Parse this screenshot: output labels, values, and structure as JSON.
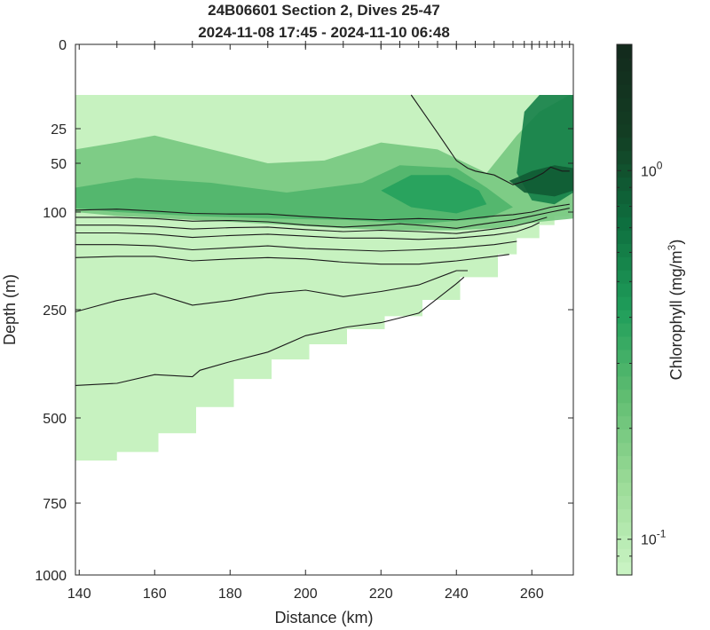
{
  "chart_data": {
    "type": "heatmap",
    "title": [
      "24B06601 Section 2, Dives 25-47",
      "2024-11-08 17:45 - 2024-11-10 06:48"
    ],
    "xlabel": "Distance (km)",
    "ylabel": "Depth (m)",
    "xlim": [
      139,
      271
    ],
    "xticks": [
      140,
      160,
      180,
      200,
      220,
      240,
      260
    ],
    "ylim": [
      0,
      1000
    ],
    "yscale": "compressed (non-linear)",
    "ytick_labels": [
      "0",
      "25",
      "50",
      "100",
      "250",
      "500",
      "750",
      "1000"
    ],
    "colorbar": {
      "label": "Chlorophyll (mg/m",
      "label_sup": "3",
      "label_end": ")",
      "scale": "log",
      "range": [
        0.08,
        2.2
      ],
      "tick_labels": [
        {
          "base": "10",
          "exp": "0"
        },
        {
          "base": "10",
          "exp": "-1"
        }
      ],
      "colormap": [
        "#ccf5c5",
        "#9ddc99",
        "#62be72",
        "#1f9e5a",
        "#0e6e3e",
        "#133d23",
        "#132a1c"
      ]
    },
    "dive_positions_km": [
      150,
      160,
      170,
      190,
      200,
      210,
      220,
      225,
      230,
      235,
      240,
      245,
      250,
      255,
      258,
      260,
      262,
      264,
      266,
      268,
      270
    ],
    "data_depth_top_m": 15,
    "bottom_profile": {
      "x": [
        139,
        150,
        161,
        171,
        181,
        191,
        201,
        211,
        221,
        231,
        241,
        251,
        256,
        262,
        266,
        270
      ],
      "depth": [
        625,
        600,
        545,
        475,
        410,
        365,
        330,
        295,
        265,
        235,
        200,
        165,
        140,
        120,
        106,
        100
      ]
    },
    "regions": [
      {
        "level": 0.2,
        "x": [
          139,
          150,
          160,
          175,
          190,
          205,
          220,
          235,
          248,
          256,
          262,
          270,
          271,
          271,
          262,
          250,
          240,
          225,
          210,
          190,
          170,
          150,
          139
        ],
        "depth": [
          40,
          35,
          30,
          40,
          50,
          48,
          35,
          40,
          60,
          30,
          20,
          15,
          15,
          110,
          115,
          125,
          128,
          128,
          125,
          118,
          112,
          106,
          100
        ]
      },
      {
        "level": 0.28,
        "x": [
          139,
          155,
          175,
          195,
          215,
          225,
          240,
          248,
          255,
          248,
          230,
          210,
          190,
          170,
          150,
          139
        ],
        "depth": [
          75,
          65,
          70,
          80,
          70,
          52,
          55,
          75,
          95,
          110,
          118,
          112,
          110,
          106,
          100,
          96
        ]
      },
      {
        "level": 0.4,
        "x": [
          220,
          228,
          238,
          246,
          248,
          240,
          228
        ],
        "depth": [
          78,
          62,
          62,
          78,
          92,
          102,
          95
        ]
      },
      {
        "level": 0.6,
        "x": [
          258,
          262,
          266,
          271,
          271,
          266,
          260,
          256
        ],
        "depth": [
          20,
          15,
          15,
          15,
          80,
          92,
          88,
          60
        ]
      },
      {
        "level": 0.9,
        "x": [
          254,
          260,
          266,
          271,
          271,
          266,
          258
        ],
        "depth": [
          68,
          58,
          52,
          55,
          78,
          84,
          80
        ]
      }
    ],
    "contours": [
      {
        "x": [
          139,
          150,
          160,
          170,
          180,
          190,
          200,
          210,
          220,
          230,
          240,
          250,
          255,
          260,
          265,
          270
        ],
        "depth": [
          98,
          97,
          99,
          102,
          103,
          103,
          107,
          110,
          112,
          110,
          112,
          106,
          104,
          100,
          95,
          92
        ]
      },
      {
        "x": [
          139,
          150,
          160,
          170,
          180,
          190,
          200,
          210,
          220,
          225,
          230,
          240,
          245,
          250,
          255,
          260,
          265,
          270
        ],
        "depth": [
          108,
          108,
          110,
          114,
          113,
          115,
          120,
          123,
          120,
          118,
          120,
          125,
          120,
          116,
          112,
          106,
          100,
          96
        ]
      },
      {
        "x": [
          139,
          150,
          160,
          170,
          180,
          190,
          200,
          210,
          220,
          230,
          240,
          250,
          255,
          260,
          264
        ],
        "depth": [
          120,
          120,
          122,
          126,
          124,
          123,
          127,
          130,
          128,
          130,
          133,
          126,
          122,
          115,
          108
        ]
      },
      {
        "x": [
          139,
          150,
          160,
          170,
          180,
          190,
          200,
          210,
          220,
          230,
          240,
          250,
          256,
          260,
          262
        ],
        "depth": [
          132,
          132,
          134,
          139,
          136,
          134,
          137,
          140,
          140,
          142,
          140,
          135,
          130,
          122,
          116
        ]
      },
      {
        "x": [
          139,
          150,
          160,
          170,
          180,
          190,
          200,
          210,
          220,
          230,
          240,
          250,
          256
        ],
        "depth": [
          150,
          150,
          152,
          158,
          155,
          152,
          156,
          158,
          160,
          158,
          155,
          150,
          145
        ]
      },
      {
        "x": [
          139,
          150,
          160,
          170,
          180,
          190,
          200,
          210,
          220,
          230,
          240,
          250,
          254
        ],
        "depth": [
          170,
          168,
          168,
          175,
          172,
          170,
          172,
          177,
          180,
          180,
          175,
          168,
          165
        ]
      },
      {
        "x": [
          139,
          150,
          160,
          170,
          180,
          190,
          200,
          210,
          220,
          230,
          240,
          243
        ],
        "depth": [
          255,
          236,
          225,
          243,
          236,
          225,
          220,
          230,
          222,
          212,
          190,
          190
        ]
      },
      {
        "x": [
          139,
          150,
          160,
          170,
          172,
          180,
          190,
          200,
          211,
          220,
          230,
          240,
          242
        ],
        "depth": [
          425,
          420,
          400,
          405,
          390,
          370,
          348,
          310,
          290,
          280,
          258,
          210,
          200
        ]
      },
      {
        "x": [
          228,
          235,
          240,
          243,
          245,
          250,
          255,
          260,
          263,
          265,
          268,
          270
        ],
        "depth": [
          15,
          28,
          48,
          55,
          58,
          62,
          72,
          66,
          60,
          54,
          58,
          58
        ]
      }
    ]
  }
}
